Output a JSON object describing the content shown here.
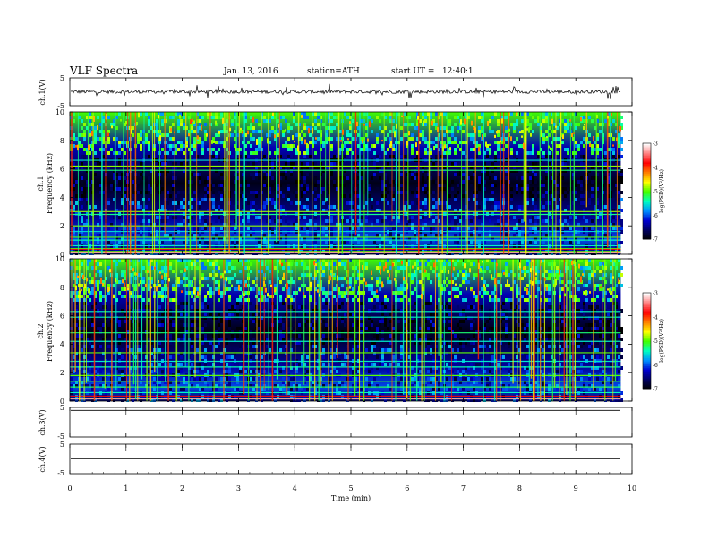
{
  "header": {
    "title": "VLF Spectra",
    "date": "Jan. 13, 2016",
    "station": "station=ATH",
    "start": "start UT =   12:40:1"
  },
  "chart_data": [
    {
      "type": "line",
      "name": "ch1-waveform",
      "ylabel": "ch.1(V)",
      "ylim": [
        -5,
        5
      ],
      "yticks": [
        "5",
        "-5"
      ],
      "level": 0.0,
      "noise": "spiky"
    },
    {
      "type": "heatmap",
      "name": "ch1-spectrogram",
      "ylabel": "ch.1",
      "ylabel2": "Frequency (kHz)",
      "ylim": [
        0,
        10
      ],
      "yticks": [
        "0",
        "2",
        "4",
        "6",
        "8",
        "10"
      ],
      "colorbar": {
        "label": "log(PSD)(V²/Hz)",
        "range": [
          -7,
          -3
        ],
        "ticks": [
          "-3",
          "-4",
          "-5",
          "-6",
          "-7"
        ]
      },
      "bands_khz": [
        0.2,
        0.4,
        0.6,
        1.0,
        1.2,
        1.6,
        2.0,
        2.8,
        3.0,
        5.9,
        6.2,
        6.6
      ]
    },
    {
      "type": "heatmap",
      "name": "ch2-spectrogram",
      "ylabel": "ch.2",
      "ylabel2": "Frequency (kHz)",
      "ylim": [
        0,
        10
      ],
      "yticks": [
        "0",
        "2",
        "4",
        "6",
        "8",
        "10"
      ],
      "colorbar": {
        "label": "log(PSD)(V²/Hz)",
        "range": [
          -7,
          -3
        ],
        "ticks": [
          "-3",
          "-4",
          "-5",
          "-6",
          "-7"
        ]
      },
      "bands_khz": [
        0.2,
        0.6,
        1.0,
        1.4,
        1.8,
        2.4,
        2.8,
        3.4,
        4.2,
        4.8,
        5.9,
        6.3
      ]
    },
    {
      "type": "line",
      "name": "ch3-waveform",
      "ylabel": "ch.3(V)",
      "ylim": [
        -5,
        5
      ],
      "yticks": [
        "5",
        "-5"
      ],
      "level": 4.0
    },
    {
      "type": "line",
      "name": "ch4-waveform",
      "ylabel": "ch.4(V)",
      "ylim": [
        -5,
        5
      ],
      "yticks": [
        "5",
        "-5"
      ],
      "level": 0.0
    }
  ],
  "xaxis": {
    "label": "Time (min)",
    "range": [
      0,
      10
    ],
    "data_end": 9.8,
    "ticks": [
      "0",
      "1",
      "2",
      "3",
      "4",
      "5",
      "6",
      "7",
      "8",
      "9",
      "10"
    ]
  },
  "colors": {
    "background": "#ffffff",
    "frame": "#000000",
    "colormap": [
      "#000000",
      "#000060",
      "#0000d0",
      "#0090ff",
      "#00ffc0",
      "#40ff00",
      "#ffff00",
      "#ff7f00",
      "#ff0000",
      "#ff8080",
      "#ffffff"
    ]
  }
}
